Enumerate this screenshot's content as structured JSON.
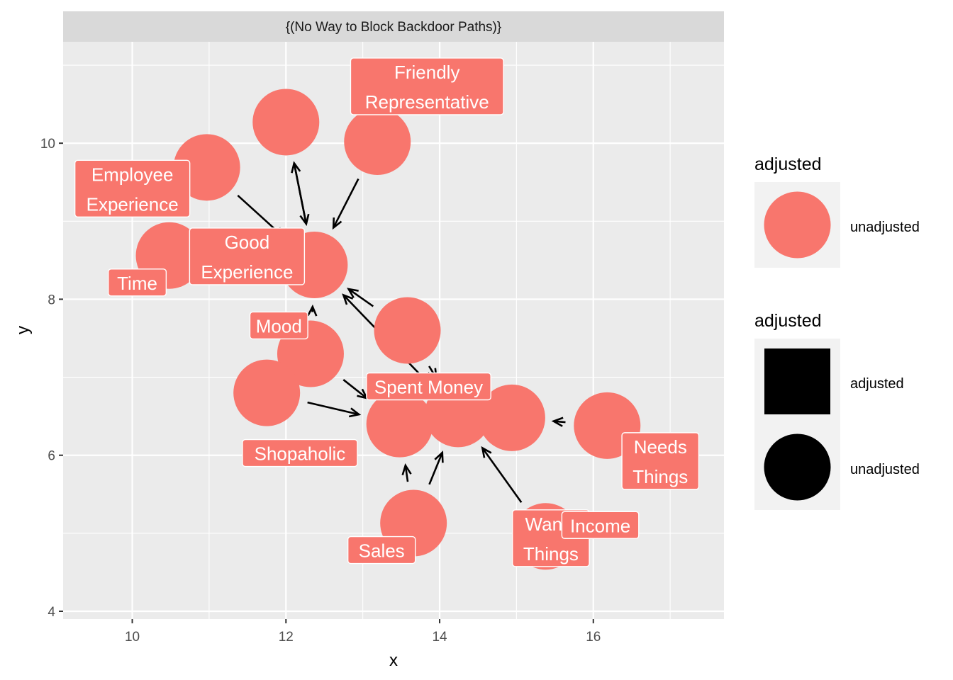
{
  "chart_data": {
    "type": "scatter",
    "panel_title": "{(No Way to Block Backdoor Paths)}",
    "xlabel": "x",
    "ylabel": "y",
    "xlim": [
      9.1,
      17.7
    ],
    "ylim": [
      3.9,
      11.3
    ],
    "x_ticks": [
      10,
      12,
      14,
      16
    ],
    "y_ticks": [
      4,
      6,
      8,
      10
    ],
    "grid": true,
    "node_color": "#F8766D",
    "nodes": [
      {
        "id": "time",
        "label": "Time",
        "x": 10.48,
        "y": 8.56,
        "label_lines": [
          "Time"
        ]
      },
      {
        "id": "employee_experience",
        "label": "Employee Experience",
        "x": 10.97,
        "y": 9.69,
        "label_lines": [
          "Employee",
          "Experience"
        ]
      },
      {
        "id": "mood",
        "label": "Mood",
        "x": 12.0,
        "y": 10.27,
        "label_lines": [
          "Mood"
        ]
      },
      {
        "id": "friendly_representative",
        "label": "Friendly Representative",
        "x": 13.19,
        "y": 10.02,
        "label_lines": [
          "Friendly",
          "Representative"
        ]
      },
      {
        "id": "good_experience",
        "label": "Good Experience",
        "x": 12.37,
        "y": 8.44,
        "label_lines": [
          "Good",
          "Experience"
        ]
      },
      {
        "id": "spent_money",
        "label": "Spent Money",
        "x": 13.58,
        "y": 7.6,
        "label_lines": [
          "Spent Money"
        ]
      },
      {
        "id": "shopaholic",
        "label": "Shopaholic",
        "x": 12.32,
        "y": 7.3,
        "label_lines": [
          "Shopaholic"
        ]
      },
      {
        "id": "n8",
        "label": "",
        "x": 11.75,
        "y": 6.8,
        "label_lines": []
      },
      {
        "id": "n9",
        "label": "",
        "x": 13.48,
        "y": 6.4,
        "label_lines": []
      },
      {
        "id": "n10",
        "label": "",
        "x": 14.24,
        "y": 6.53,
        "label_lines": []
      },
      {
        "id": "wants_things",
        "label": "Wants Things",
        "x": 14.94,
        "y": 6.48,
        "label_lines": [
          "Wants",
          "Things"
        ]
      },
      {
        "id": "needs_things",
        "label": "Needs Things",
        "x": 16.18,
        "y": 6.38,
        "label_lines": [
          "Needs",
          "Things"
        ]
      },
      {
        "id": "sales",
        "label": "Sales",
        "x": 13.66,
        "y": 5.13,
        "label_lines": [
          "Sales"
        ]
      },
      {
        "id": "income",
        "label": "Income",
        "x": 15.38,
        "y": 4.96,
        "label_lines": [
          "Income"
        ]
      }
    ],
    "edges": [
      {
        "from": "employee_experience",
        "to": "good_experience"
      },
      {
        "from": "mood",
        "to": "good_experience"
      },
      {
        "from": "friendly_representative",
        "to": "good_experience"
      },
      {
        "from": "spent_money",
        "to": "good_experience"
      },
      {
        "from": "n10",
        "to": "good_experience"
      },
      {
        "from": "shopaholic",
        "to": "good_experience"
      },
      {
        "from": "shopaholic",
        "to": "n9"
      },
      {
        "from": "n8",
        "to": "n9"
      },
      {
        "from": "sales",
        "to": "n9"
      },
      {
        "from": "sales",
        "to": "n10"
      },
      {
        "from": "income",
        "to": "n10"
      },
      {
        "from": "spent_money",
        "to": "n10"
      },
      {
        "from": "needs_things",
        "to": "wants_things"
      },
      {
        "from": "good_experience",
        "to": "mood"
      }
    ],
    "legends": [
      {
        "title": "adjusted",
        "entries": [
          {
            "label": "unadjusted",
            "shape": "circle",
            "color": "#F8766D"
          }
        ]
      },
      {
        "title": "adjusted",
        "entries": [
          {
            "label": "adjusted",
            "shape": "square",
            "color": "#000000"
          },
          {
            "label": "unadjusted",
            "shape": "circle",
            "color": "#000000"
          }
        ]
      }
    ]
  }
}
